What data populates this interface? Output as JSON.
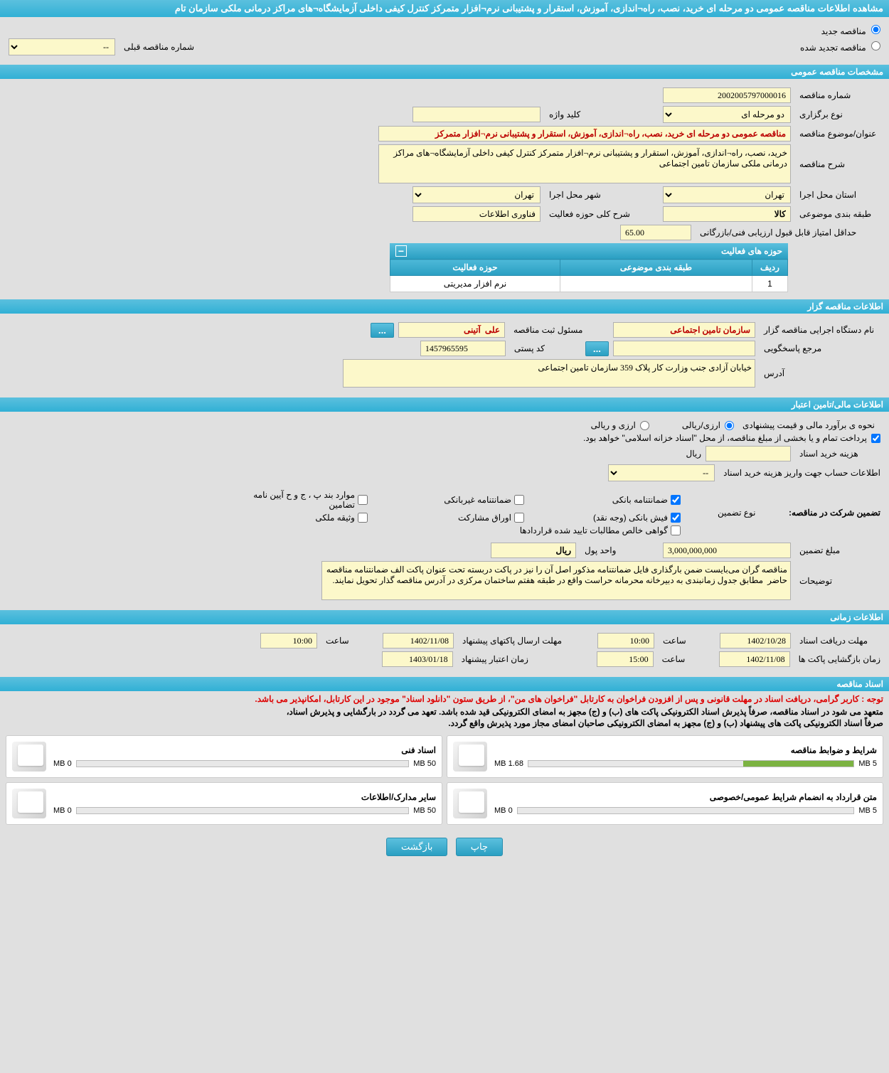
{
  "page_title": "مشاهده اطلاعات مناقصه عمومی دو مرحله ای خرید، نصب، راه¬اندازی، آموزش، استقرار و پشتیبانی نرم¬افزار متمرکز کنترل کیفی داخلی آزمایشگاه¬های مراکز درمانی ملکی سازمان تام",
  "tender_type": {
    "new": "مناقصه جدید",
    "renewed": "مناقصه تجدید شده",
    "prev_number_label": "شماره مناقصه قبلی",
    "prev_number_value": "--"
  },
  "sections": {
    "general": "مشخصات مناقصه عمومی",
    "holder": "اطلاعات مناقصه گزار",
    "financial": "اطلاعات مالی/تامین اعتبار",
    "timing": "اطلاعات زمانی",
    "docs": "اسناد مناقصه"
  },
  "general": {
    "number_label": "شماره مناقصه",
    "number": "2002005797000016",
    "holding_type_label": "نوع برگزاری",
    "holding_type": "دو مرحله ای",
    "keyword_label": "کلید واژه",
    "keyword": "",
    "subject_label": "عنوان/موضوع مناقصه",
    "subject": "مناقصه عمومی دو مرحله ای خرید، نصب، راه¬اندازی، آموزش، استقرار و پشتیبانی نرم¬افزار متمرکز",
    "desc_label": "شرح مناقصه",
    "desc": "خرید، نصب، راه¬اندازی، آموزش، استقرار و پشتیبانی نرم¬افزار متمرکز کنترل کیفی داخلی آزمایشگاه¬های مراکز درمانی ملکی سازمان تامین اجتماعی",
    "province_label": "استان محل اجرا",
    "province": "تهران",
    "city_label": "شهر محل اجرا",
    "city": "تهران",
    "category_label": "طبقه بندی موضوعی",
    "category": "کالا",
    "scope_label": "شرح کلی حوزه فعالیت",
    "scope": "فناوری اطلاعات",
    "min_score_label": "حداقل امتیاز قابل قبول ارزیابی فنی/بازرگانی",
    "min_score": "65.00"
  },
  "activity_table": {
    "title": "حوزه های فعالیت",
    "minimize": "−",
    "cols": {
      "row": "ردیف",
      "category": "طبقه بندی موضوعی",
      "scope": "حوزه فعالیت"
    },
    "rows": [
      {
        "row": "1",
        "category": "",
        "scope": "نرم افزار مدیریتی"
      }
    ]
  },
  "holder": {
    "agency_label": "نام دستگاه اجرایی مناقصه گزار",
    "agency": "سازمان تامین اجتماعی",
    "registrar_label": "مسئول ثبت مناقصه",
    "registrar": "علی  آتینی",
    "respondent_label": "مرجع پاسخگویی",
    "respondent": "",
    "postal_label": "کد پستی",
    "postal": "1457965595",
    "address_label": "آدرس",
    "address": "خیابان آزادی جنب وزارت کار پلاک 359 سازمان تامین اجتماعی"
  },
  "financial": {
    "estimate_label": "نحوه ی برآورد مالی و قیمت پیشنهادی",
    "currency_rial": "ارزی/ریالی",
    "currency_foreign": "ارزی و ریالی",
    "treasury_note": "پرداخت تمام و یا بخشی از مبلغ مناقصه، از محل \"اسناد خزانه اسلامی\" خواهد بود.",
    "purchase_cost_label": "هزینه خرید اسناد",
    "purchase_cost": "",
    "purchase_unit": "ریال",
    "account_label": "اطلاعات حساب جهت واریز هزینه خرید اسناد",
    "account_value": "--",
    "guarantee_section": "تضمین شرکت در مناقصه:",
    "guarantee_type_label": "نوع تضمین",
    "guarantees": {
      "bank": "ضمانتنامه بانکی",
      "nonbank": "ضمانتنامه غیربانکی",
      "cases": "موارد بند پ ، ج و ح آیین نامه تضامین",
      "cash": "فیش بانکی (وجه نقد)",
      "bonds": "اوراق مشارکت",
      "property": "وثیقه ملکی",
      "contracts": "گواهی خالص مطالبات تایید شده قراردادها"
    },
    "amount_label": "مبلغ تضمین",
    "amount": "3,000,000,000",
    "money_unit_label": "واحد پول",
    "money_unit": "ریال",
    "notes_label": "توضیحات",
    "notes": "مناقصه گران می‌بایست ضمن بارگذاری فایل ضمانتنامه مذکور اصل آن را نیز در پاکت دربسته تحت عنوان پاکت الف ضمانتنامه مناقصه حاضر  مطابق جدول زمانبندی به دبیرخانه محرمانه حراست واقع در طبقه هفتم ساختمان مرکزی در آدرس مناقصه گذار تحویل نمایند."
  },
  "timing": {
    "receive_label": "مهلت دریافت اسناد",
    "receive_date": "1402/10/28",
    "receive_time_label": "ساعت",
    "receive_time": "10:00",
    "send_label": "مهلت ارسال پاکتهای پیشنهاد",
    "send_date": "1402/11/08",
    "send_time_label": "ساعت",
    "send_time": "10:00",
    "open_label": "زمان بازگشایی پاکت ها",
    "open_date": "1402/11/08",
    "open_time_label": "ساعت",
    "open_time": "15:00",
    "validity_label": "زمان اعتبار پیشنهاد",
    "validity_date": "1403/01/18"
  },
  "docs": {
    "note_red": "توجه : کاربر گرامی، دریافت اسناد در مهلت قانونی و پس از افزودن فراخوان به کارتابل \"فراخوان های من\"، از طریق ستون \"دانلود اسناد\" موجود در این کارتابل، امکانپذیر می باشد.",
    "note1": "متعهد می شود در اسناد مناقصه، صرفاً پذیرش اسناد الکترونیکی پاکت های (ب) و (ج) مجهز به امضای الکترونیکی قید شده باشد. تعهد می گردد در بارگشایی و پذیرش اسناد،",
    "note2": "صرفاً اسناد الکترونیکی پاکت های پیشنهاد (ب) و (ج) مجهز به امضای الکترونیکی صاحبان امضای مجاز مورد پذیرش واقع گردد.",
    "items": [
      {
        "title": "شرایط و ضوابط مناقصه",
        "used": "1.68 MB",
        "max": "5 MB",
        "pct": 34
      },
      {
        "title": "اسناد فنی",
        "used": "0 MB",
        "max": "50 MB",
        "pct": 0
      },
      {
        "title": "متن قرارداد به انضمام شرایط عمومی/خصوصی",
        "used": "0 MB",
        "max": "5 MB",
        "pct": 0
      },
      {
        "title": "سایر مدارک/اطلاعات",
        "used": "0 MB",
        "max": "50 MB",
        "pct": 0
      }
    ]
  },
  "buttons": {
    "print": "چاپ",
    "back": "بازگشت",
    "ellipsis": "..."
  },
  "colors": {
    "header_bg": "#31b0d5",
    "input_bg": "#fcf8ca",
    "page_bg": "#e0e0e0",
    "progress_fill": "#7cb342",
    "note_red": "#d00"
  }
}
